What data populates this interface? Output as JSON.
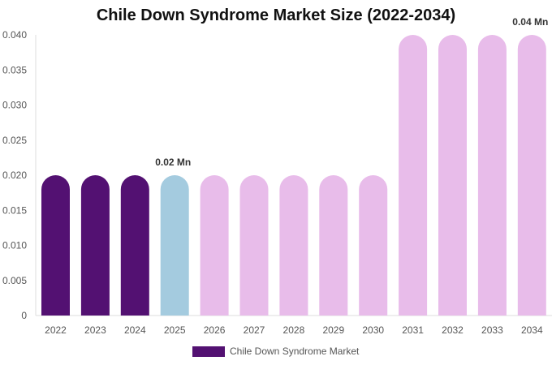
{
  "chart_data": {
    "type": "bar",
    "title": "Chile Down Syndrome Market Size (2022-2034)",
    "categories": [
      "2022",
      "2023",
      "2024",
      "2025",
      "2026",
      "2027",
      "2028",
      "2029",
      "2030",
      "2031",
      "2032",
      "2033",
      "2034"
    ],
    "series": [
      {
        "name": "Chile Down Syndrome Market",
        "values": [
          0.02,
          0.02,
          0.02,
          0.02,
          0.02,
          0.02,
          0.02,
          0.02,
          0.02,
          0.04,
          0.04,
          0.04,
          0.04
        ]
      }
    ],
    "bar_colors": [
      "#531172",
      "#531172",
      "#531172",
      "#a4cbdf",
      "#e8bcea",
      "#e8bcea",
      "#e8bcea",
      "#e8bcea",
      "#e8bcea",
      "#e8bcea",
      "#e8bcea",
      "#e8bcea",
      "#e8bcea"
    ],
    "y_ticks": [
      "0",
      "0.005",
      "0.010",
      "0.015",
      "0.020",
      "0.025",
      "0.030",
      "0.035",
      "0.040"
    ],
    "ylim": [
      0,
      0.04
    ],
    "data_labels": [
      {
        "category": "2025",
        "text": "0.02 Mn"
      },
      {
        "category": "2034",
        "text": "0.04 Mn"
      }
    ],
    "legend_position": "bottom",
    "grid": false
  }
}
